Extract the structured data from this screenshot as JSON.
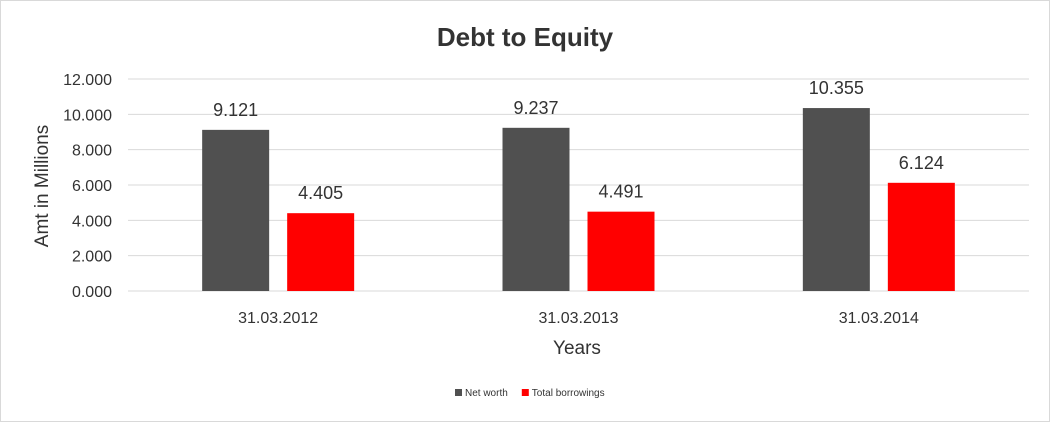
{
  "chart_data": {
    "type": "bar",
    "title": "Debt to Equity",
    "xlabel": "Years",
    "ylabel": "Amt in Millions",
    "categories": [
      "31.03.2012",
      "31.03.2013",
      "31.03.2014"
    ],
    "series": [
      {
        "name": "Net worth",
        "values": [
          9.121,
          9.237,
          10.355
        ],
        "color": "#505050"
      },
      {
        "name": "Total borrowings",
        "values": [
          4.405,
          4.491,
          6.124
        ],
        "color": "#ff0000"
      }
    ],
    "data_labels": [
      [
        "9.121",
        "9.237",
        "10.355"
      ],
      [
        "4.405",
        "4.491",
        "6.124"
      ]
    ],
    "ylim": [
      0,
      12
    ],
    "yticks": [
      "0.000",
      "2.000",
      "4.000",
      "6.000",
      "8.000",
      "10.000",
      "12.000"
    ],
    "grid": true,
    "gridline_color": "#d9d9d9",
    "legend_position": "bottom"
  }
}
